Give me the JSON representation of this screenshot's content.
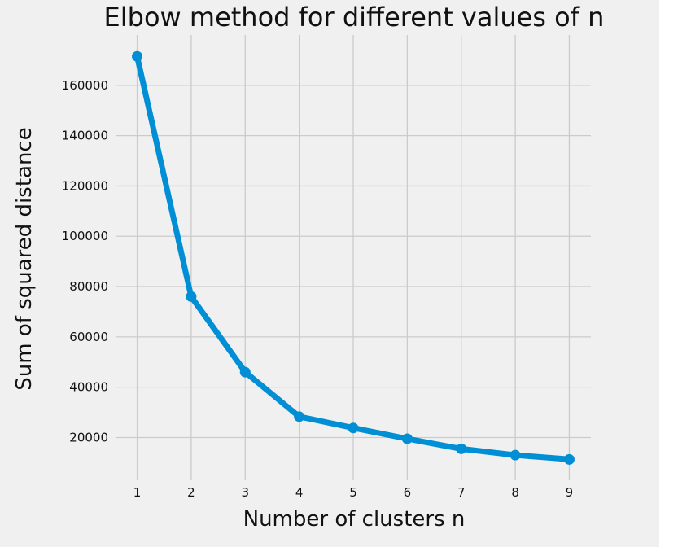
{
  "chart_data": {
    "type": "line",
    "title": "Elbow method for different values of n",
    "xlabel": "Number of clusters n",
    "ylabel": "Sum of squared distance",
    "x": [
      1,
      2,
      3,
      4,
      5,
      6,
      7,
      8,
      9
    ],
    "series": [
      {
        "values": [
          171500,
          76000,
          46000,
          28300,
          23800,
          19500,
          15500,
          13000,
          11300
        ],
        "color": "#008fd5"
      }
    ],
    "xticks": [
      "1",
      "2",
      "3",
      "4",
      "5",
      "6",
      "7",
      "8",
      "9"
    ],
    "yticks": [
      "20000",
      "40000",
      "60000",
      "80000",
      "100000",
      "120000",
      "140000",
      "160000"
    ],
    "xlim": [
      0.6,
      9.4
    ],
    "ylim": [
      3000,
      180000
    ],
    "grid": true,
    "style": "fivethirtyeight",
    "background_color": "#f0f0f0"
  }
}
